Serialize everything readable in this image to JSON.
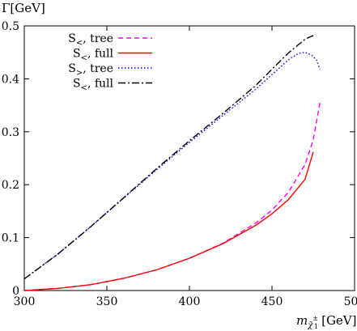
{
  "chart_data": {
    "type": "line",
    "ylabel": "Γ[GeV]",
    "xlabel_main": "m",
    "xlabel_sub": "χ̃",
    "xlabel_sup": "±",
    "xlabel_sub2": "1",
    "xlabel_unit": "[GeV]",
    "xlim": [
      300,
      500
    ],
    "ylim": [
      0,
      0.5
    ],
    "xticks": [
      300,
      350,
      400,
      450,
      500
    ],
    "yticks": [
      0,
      0.1,
      0.2,
      0.3,
      0.4,
      0.5
    ],
    "xtick_labels": [
      "300",
      "350",
      "400",
      "450",
      "500"
    ],
    "ytick_labels": [
      "0",
      "0.1",
      "0.2",
      "0.3",
      "0.4",
      "0.5"
    ],
    "legend_position": "top-left",
    "series": [
      {
        "name": "S<, tree",
        "legend_label": "S<, tree",
        "color": "#ff00ff",
        "dash": "6,4",
        "x": [
          300,
          320,
          340,
          360,
          380,
          400,
          420,
          440,
          450,
          460,
          470,
          475,
          479
        ],
        "y": [
          0.0,
          0.004,
          0.011,
          0.023,
          0.039,
          0.061,
          0.089,
          0.127,
          0.152,
          0.186,
          0.238,
          0.285,
          0.355
        ]
      },
      {
        "name": "S<, full",
        "legend_label": "S<, full",
        "color": "#ff0000",
        "dash": "",
        "x": [
          300,
          320,
          340,
          360,
          380,
          400,
          420,
          440,
          450,
          460,
          470,
          475
        ],
        "y": [
          0.0,
          0.004,
          0.011,
          0.023,
          0.039,
          0.061,
          0.088,
          0.123,
          0.145,
          0.172,
          0.21,
          0.262
        ]
      },
      {
        "name": "S>, tree",
        "legend_label": "S>, tree",
        "color": "#0000ff",
        "dash": "1.5,2.5",
        "x": [
          300,
          320,
          340,
          360,
          380,
          400,
          420,
          440,
          450,
          460,
          466,
          470,
          474,
          477,
          479
        ],
        "y": [
          0.022,
          0.068,
          0.12,
          0.174,
          0.228,
          0.28,
          0.33,
          0.38,
          0.408,
          0.436,
          0.448,
          0.45,
          0.445,
          0.435,
          0.418
        ]
      },
      {
        "name": "S<, full",
        "legend_label": "S<, full",
        "color": "#000000",
        "dash": "9,3,2,3",
        "x": [
          300,
          320,
          340,
          360,
          380,
          400,
          420,
          440,
          450,
          460,
          470,
          475
        ],
        "y": [
          0.022,
          0.068,
          0.12,
          0.175,
          0.23,
          0.283,
          0.334,
          0.387,
          0.418,
          0.449,
          0.475,
          0.482
        ]
      }
    ]
  }
}
